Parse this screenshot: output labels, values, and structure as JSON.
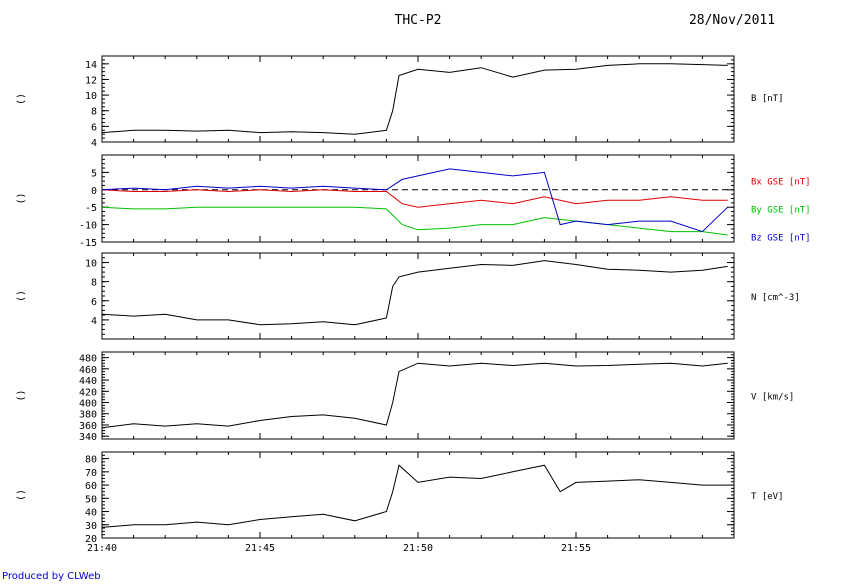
{
  "header": {
    "title": "THC-P2",
    "date": "28/Nov/2011"
  },
  "footer": {
    "credit": "Produced by CLWeb"
  },
  "colors": {
    "black": "#000000",
    "red": "#e00000",
    "green": "#00c000",
    "blue": "#0000cc"
  },
  "chart_data": [
    {
      "type": "line",
      "panel": "B",
      "left_label": "()",
      "ylim": [
        4,
        15
      ],
      "yticks": [
        4,
        6,
        8,
        10,
        12,
        14
      ],
      "series": [
        {
          "name": "B [nT]",
          "color": "#000000",
          "x": [
            0,
            1,
            2,
            3,
            4,
            5,
            6,
            7,
            8,
            9,
            9.2,
            9.4,
            10,
            11,
            12,
            13,
            14,
            15,
            16,
            17,
            18,
            19,
            19.8
          ],
          "y": [
            5.2,
            5.5,
            5.5,
            5.4,
            5.5,
            5.2,
            5.3,
            5.2,
            5.0,
            5.5,
            8.0,
            12.5,
            13.3,
            12.9,
            13.5,
            12.3,
            13.2,
            13.3,
            13.8,
            14.0,
            14.0,
            13.9,
            13.8
          ]
        }
      ]
    },
    {
      "type": "line",
      "panel": "B-GSE",
      "left_label": "()",
      "ylim": [
        -15,
        10
      ],
      "yticks": [
        -15,
        -10,
        -5,
        0,
        5
      ],
      "reference_line": 0,
      "series": [
        {
          "name": "Bx GSE [nT]",
          "color": "#e00000",
          "x": [
            0,
            1,
            2,
            3,
            4,
            5,
            6,
            7,
            8,
            9,
            9.5,
            10,
            11,
            12,
            13,
            14,
            15,
            16,
            17,
            18,
            19,
            19.8
          ],
          "y": [
            0,
            -0.5,
            -0.5,
            0,
            -0.5,
            0,
            -0.5,
            0,
            -0.5,
            -0.5,
            -4,
            -5,
            -4,
            -3,
            -4,
            -2,
            -4,
            -3,
            -3,
            -2,
            -3,
            -3
          ]
        },
        {
          "name": "By GSE [nT]",
          "color": "#00c000",
          "x": [
            0,
            1,
            2,
            3,
            4,
            5,
            6,
            7,
            8,
            9,
            9.5,
            10,
            11,
            12,
            13,
            14,
            15,
            16,
            17,
            18,
            19,
            19.8
          ],
          "y": [
            -5,
            -5.5,
            -5.5,
            -5,
            -5,
            -5,
            -5,
            -5,
            -5,
            -5.5,
            -10,
            -11.5,
            -11,
            -10,
            -10,
            -8,
            -9,
            -10,
            -11,
            -12,
            -12,
            -13
          ]
        },
        {
          "name": "Bz GSE [nT]",
          "color": "#0000cc",
          "x": [
            0,
            1,
            2,
            3,
            4,
            5,
            6,
            7,
            8,
            9,
            9.5,
            10,
            11,
            12,
            13,
            14,
            14.5,
            15,
            16,
            17,
            18,
            19,
            19.8
          ],
          "y": [
            0,
            0.5,
            0,
            1,
            0.5,
            1,
            0.5,
            1,
            0.5,
            0,
            3,
            4,
            6,
            5,
            4,
            5,
            -10,
            -9,
            -10,
            -9,
            -9,
            -12,
            -5
          ]
        }
      ]
    },
    {
      "type": "line",
      "panel": "N",
      "left_label": "()",
      "ylim": [
        2,
        11
      ],
      "yticks": [
        4,
        6,
        8,
        10
      ],
      "series": [
        {
          "name": "N [cm^-3]",
          "color": "#000000",
          "x": [
            0,
            1,
            2,
            3,
            4,
            5,
            6,
            7,
            8,
            9,
            9.2,
            9.4,
            10,
            11,
            12,
            13,
            14,
            15,
            16,
            17,
            18,
            19,
            19.8
          ],
          "y": [
            4.6,
            4.4,
            4.6,
            4.0,
            4.0,
            3.5,
            3.6,
            3.8,
            3.5,
            4.2,
            7.5,
            8.5,
            9.0,
            9.4,
            9.8,
            9.7,
            10.2,
            9.8,
            9.3,
            9.2,
            9.0,
            9.2,
            9.6
          ]
        }
      ]
    },
    {
      "type": "line",
      "panel": "V",
      "left_label": "()",
      "ylim": [
        335,
        490
      ],
      "yticks": [
        340,
        360,
        380,
        400,
        420,
        440,
        460,
        480
      ],
      "series": [
        {
          "name": "V [km/s]",
          "color": "#000000",
          "x": [
            0,
            1,
            2,
            3,
            4,
            5,
            6,
            7,
            8,
            9,
            9.2,
            9.4,
            10,
            11,
            12,
            13,
            14,
            15,
            16,
            17,
            18,
            19,
            19.8
          ],
          "y": [
            355,
            362,
            358,
            362,
            358,
            368,
            375,
            378,
            372,
            360,
            400,
            455,
            470,
            465,
            470,
            466,
            470,
            465,
            466,
            468,
            470,
            465,
            470
          ]
        }
      ]
    },
    {
      "type": "line",
      "panel": "T",
      "left_label": "()",
      "ylim": [
        20,
        85
      ],
      "yticks": [
        20,
        30,
        40,
        50,
        60,
        70,
        80
      ],
      "series": [
        {
          "name": "T [eV]",
          "color": "#000000",
          "x": [
            0,
            1,
            2,
            3,
            4,
            5,
            6,
            7,
            8,
            9,
            9.2,
            9.4,
            10,
            11,
            12,
            13,
            14,
            14.5,
            15,
            16,
            17,
            18,
            19,
            19.8
          ],
          "y": [
            28,
            30,
            30,
            32,
            30,
            34,
            36,
            38,
            33,
            40,
            55,
            75,
            62,
            66,
            65,
            70,
            75,
            55,
            62,
            63,
            64,
            62,
            60,
            60
          ]
        }
      ]
    }
  ],
  "x_axis": {
    "tick_labels": [
      "21:40",
      "21:45",
      "21:50",
      "21:55"
    ],
    "tick_minutes": [
      0,
      5,
      10,
      15
    ]
  }
}
